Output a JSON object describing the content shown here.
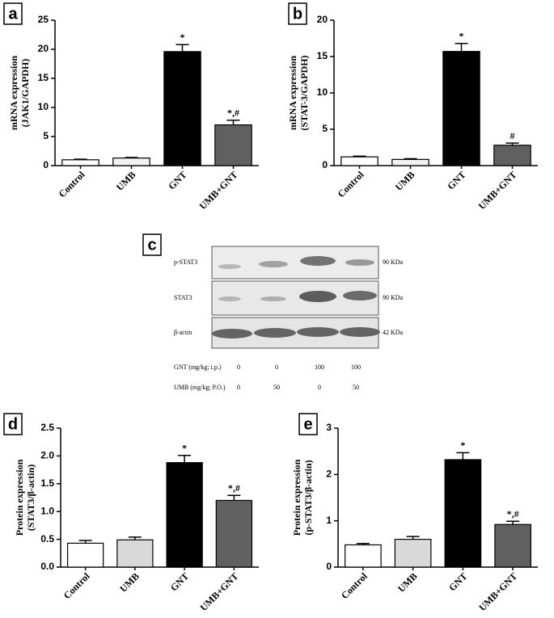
{
  "chart_data": [
    {
      "type": "bar",
      "panel": "a",
      "ylabel": [
        "mRNA expression",
        "(JAK1/GAPDH)"
      ],
      "categories": [
        "Control",
        "UMB",
        "GNT",
        "UMB+GNT"
      ],
      "values": [
        1.0,
        1.3,
        19.6,
        7.0
      ],
      "errors": [
        0.1,
        0.1,
        1.2,
        0.8
      ],
      "annotations": [
        null,
        null,
        "*",
        "*,#"
      ],
      "colors": [
        "#ffffff",
        "#f2f2f2",
        "#000000",
        "#606060"
      ],
      "ylim": [
        0,
        25
      ],
      "yticks": [
        0,
        5,
        10,
        15,
        20,
        25
      ]
    },
    {
      "type": "bar",
      "panel": "b",
      "ylabel": [
        "mRNA expression",
        "(STAT-3/GAPDH)"
      ],
      "categories": [
        "Control",
        "UMB",
        "GNT",
        "UMB+GNT"
      ],
      "values": [
        1.2,
        0.85,
        15.7,
        2.8
      ],
      "errors": [
        0.1,
        0.1,
        1.1,
        0.3
      ],
      "annotations": [
        null,
        null,
        "*",
        "#"
      ],
      "colors": [
        "#ffffff",
        "#f2f2f2",
        "#000000",
        "#606060"
      ],
      "ylim": [
        0,
        20
      ],
      "yticks": [
        0,
        5,
        10,
        15,
        20
      ]
    },
    {
      "type": "bar",
      "panel": "d",
      "ylabel": [
        "Protein expression",
        "(STAT3/β-actin)"
      ],
      "categories": [
        "Control",
        "UMB",
        "GNT",
        "UMB+GNT"
      ],
      "values": [
        0.43,
        0.49,
        1.88,
        1.2
      ],
      "errors": [
        0.05,
        0.05,
        0.13,
        0.09
      ],
      "annotations": [
        null,
        null,
        "*",
        "*,#"
      ],
      "colors": [
        "#ffffff",
        "#d9d9d9",
        "#000000",
        "#606060"
      ],
      "ylim": [
        0,
        2.5
      ],
      "yticks": [
        {
          "value": 0,
          "label": "0.0"
        },
        0.5,
        {
          "value": 1,
          "label": "1.0"
        },
        1.5,
        {
          "value": 2,
          "label": "2.0"
        },
        2.5
      ]
    },
    {
      "type": "bar",
      "panel": "e",
      "ylabel": [
        "Protein expression",
        "(p-STAT3/β-actin)"
      ],
      "categories": [
        "Control",
        "UMB",
        "GNT",
        "UMB+GNT"
      ],
      "values": [
        0.48,
        0.6,
        2.32,
        0.92
      ],
      "errors": [
        0.03,
        0.06,
        0.15,
        0.07
      ],
      "annotations": [
        null,
        null,
        "*",
        "*,#"
      ],
      "colors": [
        "#ffffff",
        "#d9d9d9",
        "#000000",
        "#606060"
      ],
      "ylim": [
        0,
        3
      ],
      "yticks": [
        0,
        1,
        2,
        3
      ]
    }
  ],
  "blot": {
    "panel": "c",
    "rows": [
      {
        "name": "p-STAT3",
        "size": "90 KDa"
      },
      {
        "name": "STAT3",
        "size": "90 KDa"
      },
      {
        "name": "β-actin",
        "size": "42 KDa"
      }
    ],
    "conditions": [
      {
        "label": "GNT (mg/kg; i.p.)",
        "values": [
          0,
          0,
          100,
          100
        ]
      },
      {
        "label": "UMB (mg/kg; P.O.)",
        "values": [
          0,
          50,
          0,
          50
        ]
      }
    ]
  }
}
